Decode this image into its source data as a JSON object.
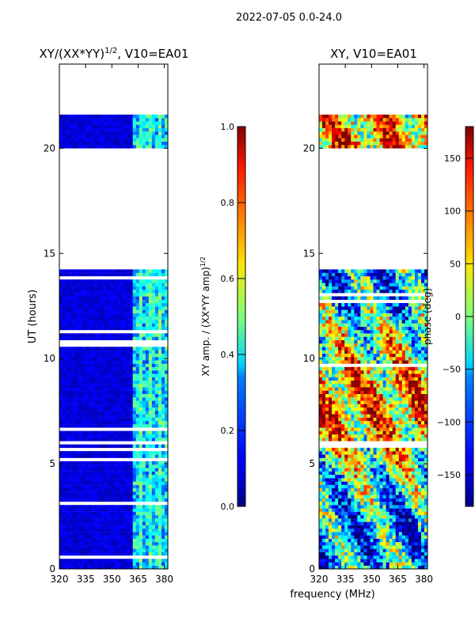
{
  "figure_title": "2022-07-05 0.0-24.0",
  "shared_xlabel": "frequency (MHz)",
  "shared_ylabel": "UT (hours)",
  "chart_data": [
    {
      "type": "heatmap",
      "title_main": "XY/(XX*YY)",
      "title_sup": "1/2",
      "title_suffix": ", V10=EA01",
      "xlim": [
        320,
        382
      ],
      "ylim": [
        0,
        24
      ],
      "xticks": [
        320,
        335,
        350,
        365,
        380
      ],
      "yticks": [
        0,
        5,
        10,
        15,
        20
      ],
      "no_data_gaps_hours": [
        [
          14.3,
          20.0
        ],
        [
          21.6,
          24.0
        ]
      ],
      "colorbar": {
        "label_main": "XY amp. / (XX*YY amp)",
        "label_sup": "1/2",
        "range": [
          0.0,
          1.0
        ],
        "ticks": [
          "0.0",
          "0.2",
          "0.4",
          "0.6",
          "0.8",
          "1.0"
        ],
        "colormap": "jet"
      }
    },
    {
      "type": "heatmap",
      "title_main": "XY, V10=EA01",
      "xlim": [
        320,
        382
      ],
      "ylim": [
        0,
        24
      ],
      "xticks": [
        320,
        335,
        350,
        365,
        380
      ],
      "yticks": [
        0,
        5,
        10,
        15,
        20
      ],
      "no_data_gaps_hours": [
        [
          14.3,
          20.0
        ],
        [
          21.6,
          24.0
        ]
      ],
      "colorbar": {
        "label_main": "phase (deg)",
        "range": [
          -180,
          180
        ],
        "ticks": [
          "−150",
          "−100",
          "−50",
          "0",
          "50",
          "100",
          "150"
        ],
        "colormap": "jet"
      }
    }
  ]
}
